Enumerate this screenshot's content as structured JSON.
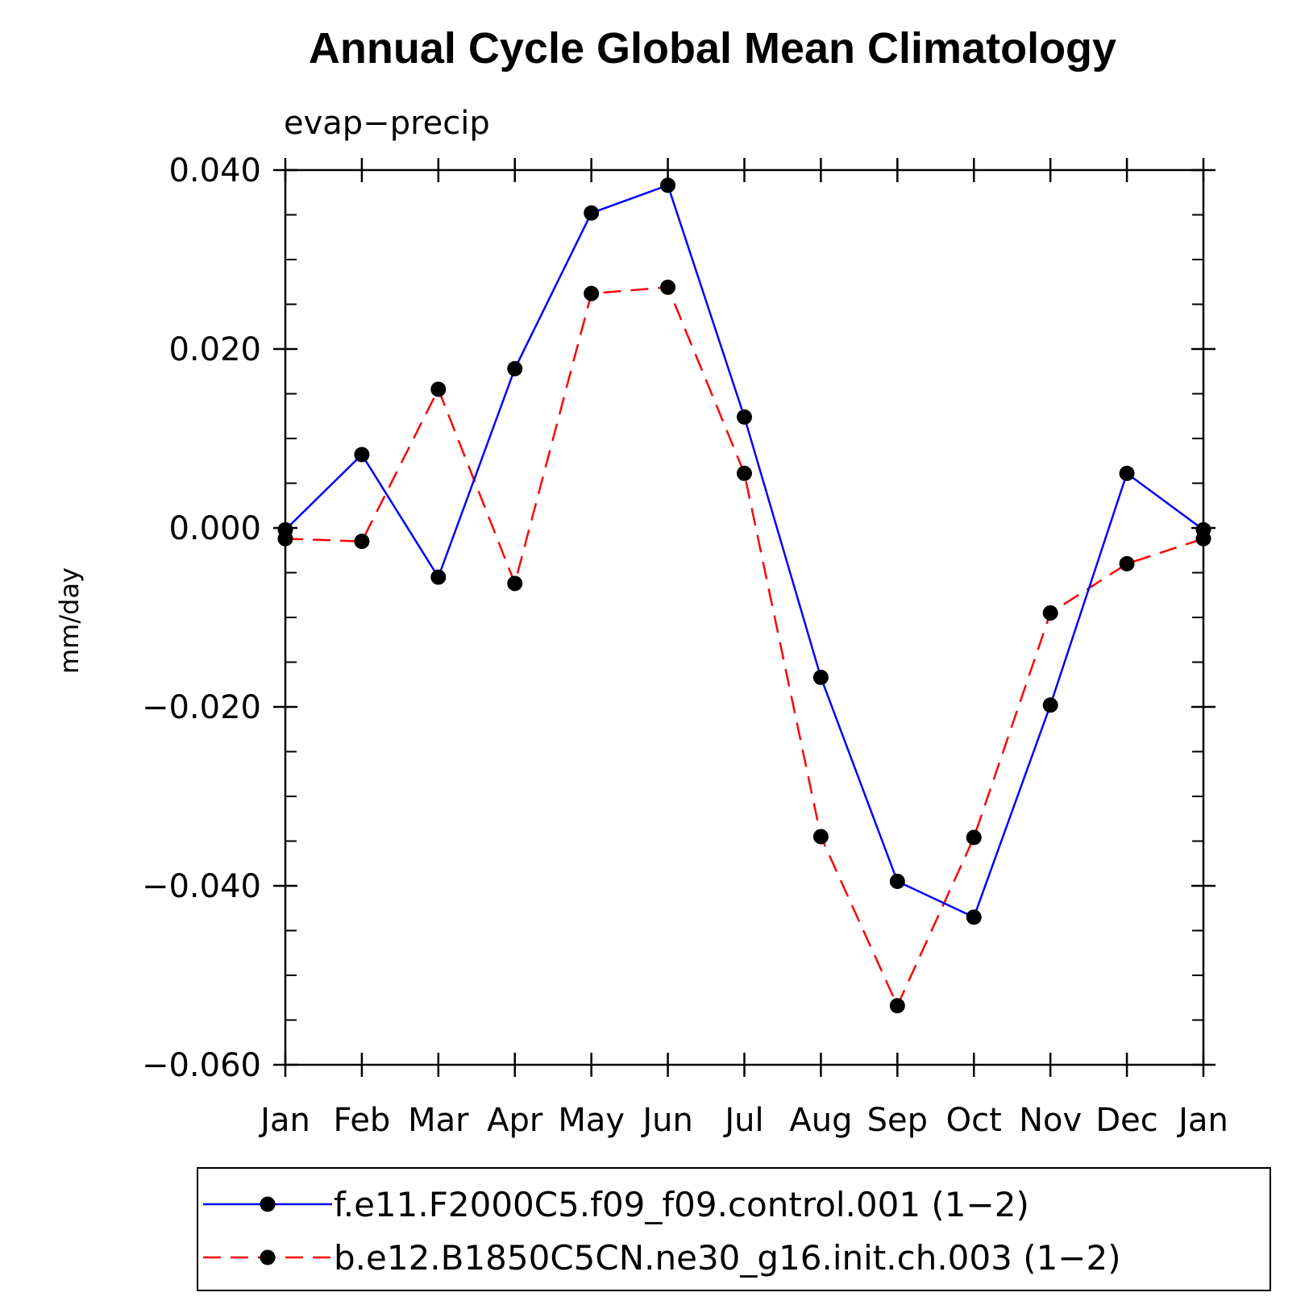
{
  "chart_data": {
    "type": "line",
    "title": "Annual Cycle Global Mean Climatology",
    "subtitle": "evap−precip",
    "xlabel": "",
    "ylabel": "mm/day",
    "categories": [
      "Jan",
      "Feb",
      "Mar",
      "Apr",
      "May",
      "Jun",
      "Jul",
      "Aug",
      "Sep",
      "Oct",
      "Nov",
      "Dec",
      "Jan"
    ],
    "ylim": [
      -0.06,
      0.04
    ],
    "yticks": [
      0.04,
      0.02,
      0.0,
      -0.02,
      -0.04,
      -0.06
    ],
    "ytick_labels": [
      "0.040",
      "0.020",
      "0.000",
      "−0.020",
      "−0.040",
      "−0.060"
    ],
    "grid": false,
    "legend_position": "bottom",
    "series": [
      {
        "name": "f.e11.F2000C5.f09_f09.control.001 (1−2)",
        "color": "#0000ff",
        "dash": "solid",
        "marker": "dot",
        "values": [
          -0.0002,
          0.0082,
          -0.0055,
          0.0178,
          0.0352,
          0.0383,
          0.0124,
          -0.0167,
          -0.0395,
          -0.0435,
          -0.0198,
          0.0061,
          -0.0002
        ]
      },
      {
        "name": "b.e12.B1850C5CN.ne30_g16.init.ch.003 (1−2)",
        "color": "#ff0000",
        "dash": "dashed",
        "marker": "dot",
        "values": [
          -0.0012,
          -0.0015,
          0.0155,
          -0.0062,
          0.0262,
          0.0269,
          0.0061,
          -0.0345,
          -0.0534,
          -0.0346,
          -0.0095,
          -0.004,
          -0.0012
        ]
      }
    ]
  }
}
